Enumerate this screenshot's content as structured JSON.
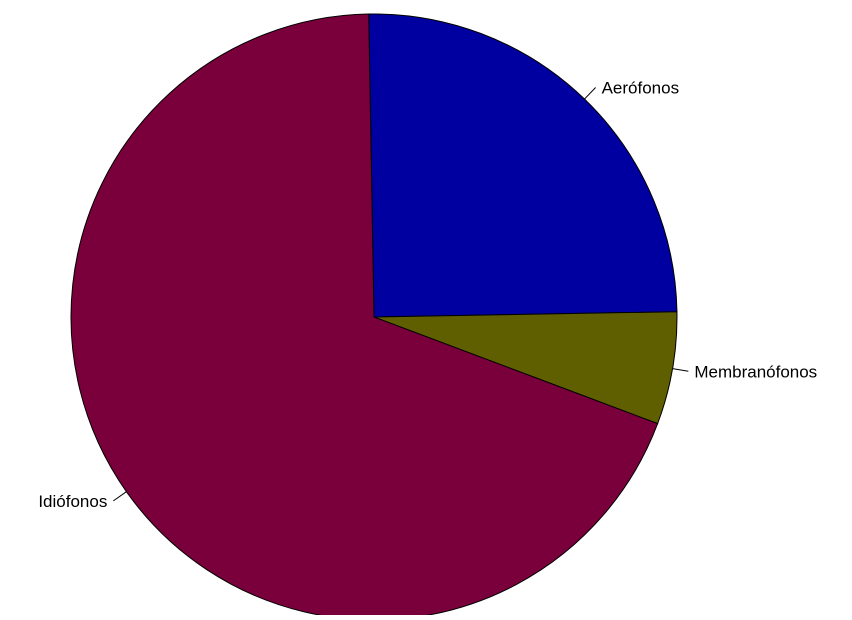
{
  "chart_data": {
    "type": "pie",
    "title": "",
    "slices": [
      {
        "label": "Aerófonos",
        "value": 25,
        "color": "#0000A0"
      },
      {
        "label": "Membranófonos",
        "value": 6,
        "color": "#5F5F00"
      },
      {
        "label": "Idiófonos",
        "value": 69,
        "color": "#7A003C"
      }
    ],
    "start_angle_deg": 91,
    "direction": "clockwise",
    "legend": "none",
    "border_color": "#000000"
  }
}
